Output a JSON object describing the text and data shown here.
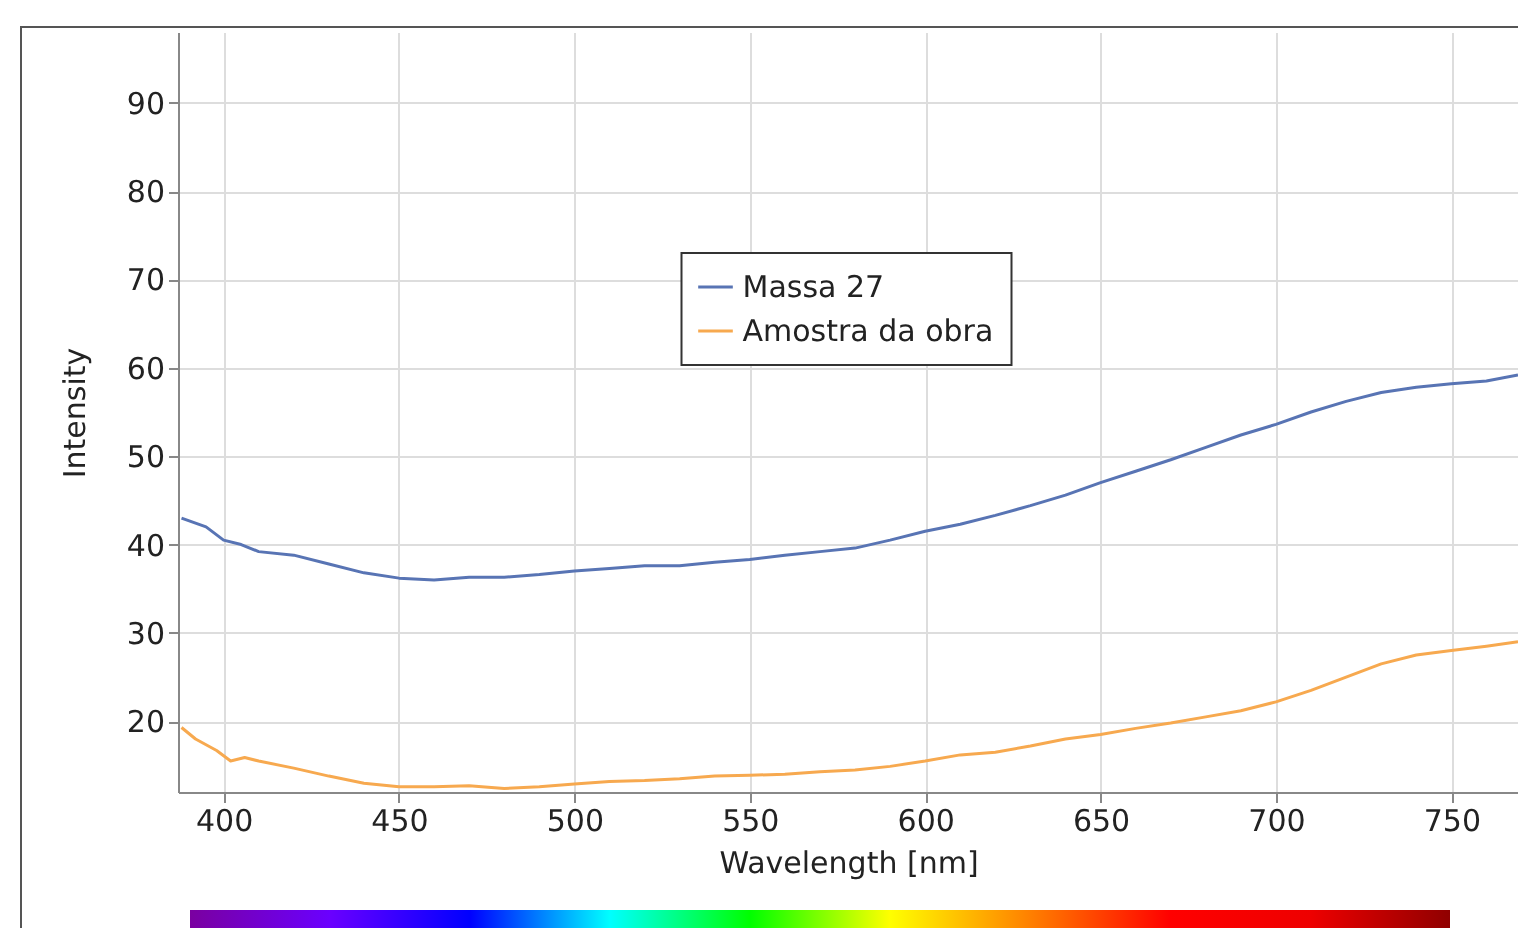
{
  "chart_data": {
    "type": "line",
    "xlabel": "Wavelength [nm]",
    "ylabel": "Intensity",
    "xlim": [
      387,
      769
    ],
    "ylim": [
      12,
      98
    ],
    "xticks": [
      400,
      450,
      500,
      550,
      600,
      650,
      700,
      750
    ],
    "yticks": [
      20,
      30,
      40,
      50,
      60,
      70,
      80,
      90
    ],
    "grid": true,
    "legend": "top",
    "line_style": "solid",
    "series": [
      {
        "name": "Massa 27",
        "color": "#5874b4",
        "x": [
          388,
          395,
          400,
          405,
          410,
          420,
          430,
          440,
          450,
          460,
          470,
          480,
          490,
          500,
          510,
          520,
          530,
          540,
          550,
          560,
          570,
          580,
          590,
          600,
          610,
          620,
          630,
          640,
          650,
          660,
          670,
          680,
          690,
          700,
          710,
          720,
          730,
          740,
          750,
          760,
          769
        ],
        "values": [
          43,
          42,
          40.5,
          40,
          39.2,
          38.8,
          37.8,
          36.8,
          36.2,
          36,
          36.3,
          36.3,
          36.6,
          37,
          37.3,
          37.6,
          37.6,
          38,
          38.3,
          38.8,
          39.2,
          39.6,
          40.5,
          41.5,
          42.3,
          43.3,
          44.4,
          45.6,
          47,
          48.3,
          49.6,
          51,
          52.4,
          53.6,
          55,
          56.2,
          57.2,
          57.8,
          58.2,
          58.5,
          59.2
        ]
      },
      {
        "name": "Amostra da obra",
        "color": "#f7a94f",
        "x": [
          388,
          392,
          398,
          402,
          406,
          410,
          420,
          430,
          440,
          450,
          460,
          470,
          480,
          490,
          500,
          510,
          520,
          530,
          540,
          550,
          560,
          570,
          580,
          590,
          600,
          610,
          620,
          630,
          640,
          650,
          660,
          670,
          680,
          690,
          700,
          710,
          720,
          730,
          740,
          750,
          760,
          769
        ],
        "values": [
          19.3,
          18,
          16.7,
          15.5,
          15.9,
          15.5,
          14.7,
          13.8,
          13,
          12.6,
          12.6,
          12.7,
          12.4,
          12.6,
          12.9,
          13.2,
          13.3,
          13.5,
          13.8,
          13.9,
          14,
          14.3,
          14.5,
          14.9,
          15.5,
          16.2,
          16.5,
          17.2,
          18,
          18.5,
          19.2,
          19.8,
          20.5,
          21.2,
          22.2,
          23.5,
          25,
          26.5,
          27.5,
          28,
          28.5,
          29
        ]
      }
    ]
  }
}
